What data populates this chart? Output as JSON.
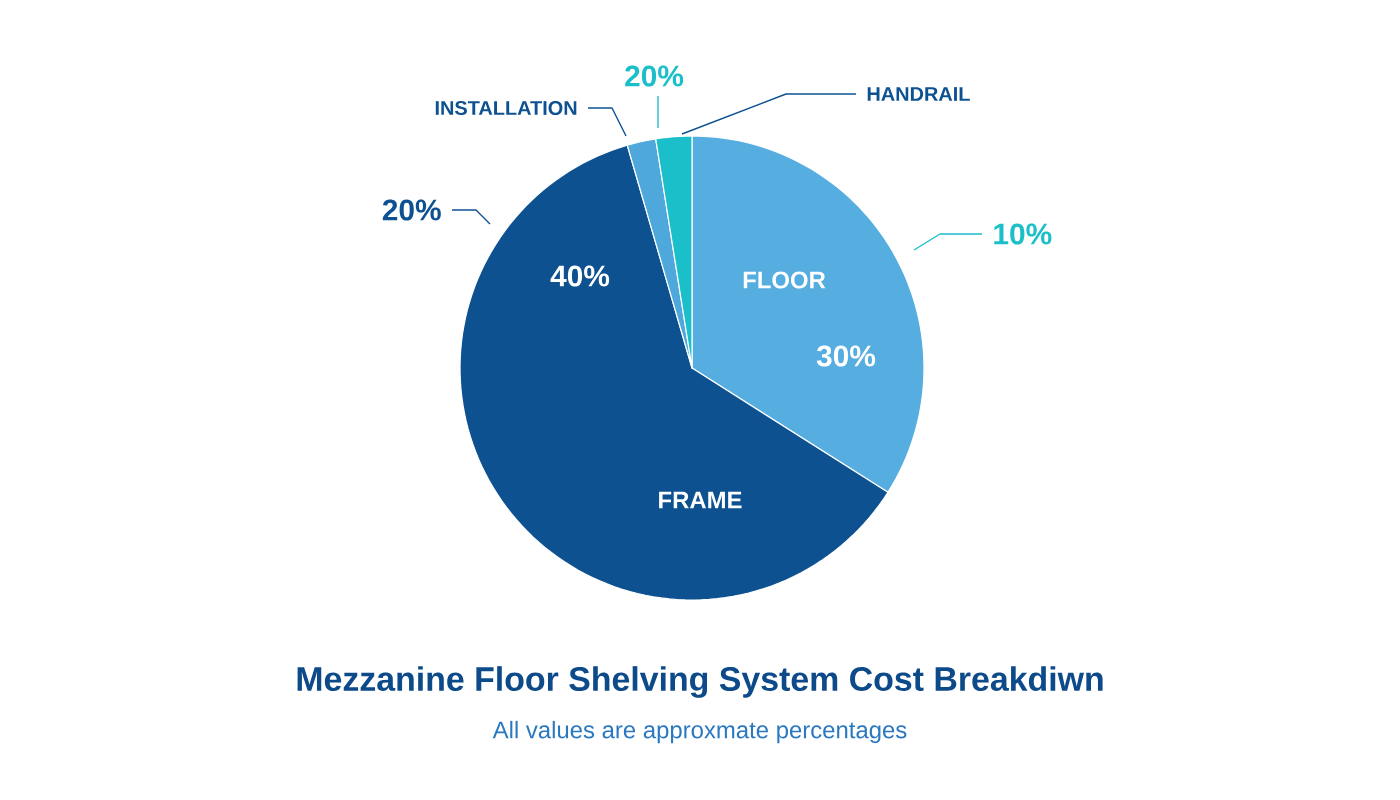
{
  "chart_data": {
    "type": "pie",
    "title": "Mezzanine Floor Shelving System Cost Breakdiwn",
    "subtitle": "All values are approxmate percentages",
    "categories": [
      "FLOOR",
      "FRAME",
      "INSTALLATION",
      "HANDRAIL"
    ],
    "values": [
      34,
      61.5,
      2,
      2.5
    ],
    "colors": [
      "#55ade0",
      "#0d5191",
      "#4fa8dc",
      "#1bbfc9"
    ],
    "annotations": [
      "30%",
      "40%",
      "10%",
      "20%",
      "20%"
    ]
  }
}
